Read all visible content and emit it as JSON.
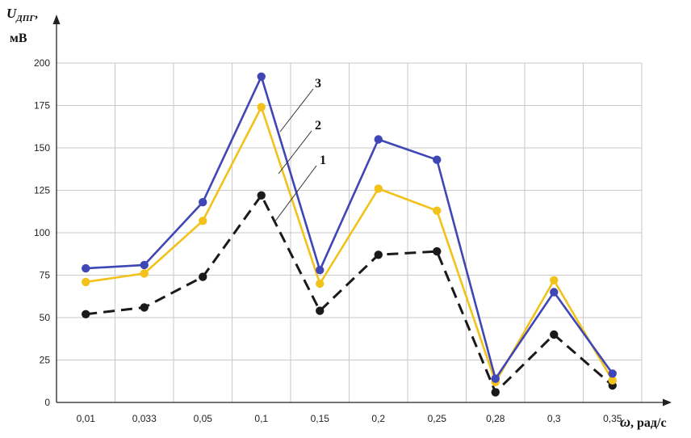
{
  "chart_data": {
    "type": "line",
    "ylabel_main": "U",
    "ylabel_sub": "ДПГ",
    "ylabel_comma": ",",
    "yunit": "мВ",
    "xlabel_symbol": "ω",
    "xlabel_unit": ", рад/с",
    "categories": [
      "0,01",
      "0,033",
      "0,05",
      "0,1",
      "0,15",
      "0,2",
      "0,25",
      "0,28",
      "0,3",
      "0,35"
    ],
    "yticks": [
      0,
      25,
      50,
      75,
      100,
      125,
      150,
      175,
      200
    ],
    "ylim": [
      0,
      200
    ],
    "grid": true,
    "series": [
      {
        "name": "1",
        "color": "#1a1a1a",
        "dash": true,
        "values": [
          52,
          56,
          74,
          122,
          54,
          87,
          89,
          6,
          40,
          10
        ]
      },
      {
        "name": "2",
        "color": "#f2c21b",
        "dash": false,
        "values": [
          71,
          76,
          107,
          174,
          70,
          126,
          113,
          12,
          72,
          13
        ]
      },
      {
        "name": "3",
        "color": "#3f46b5",
        "dash": false,
        "values": [
          79,
          81,
          118,
          192,
          78,
          155,
          143,
          14,
          65,
          17
        ]
      }
    ]
  }
}
